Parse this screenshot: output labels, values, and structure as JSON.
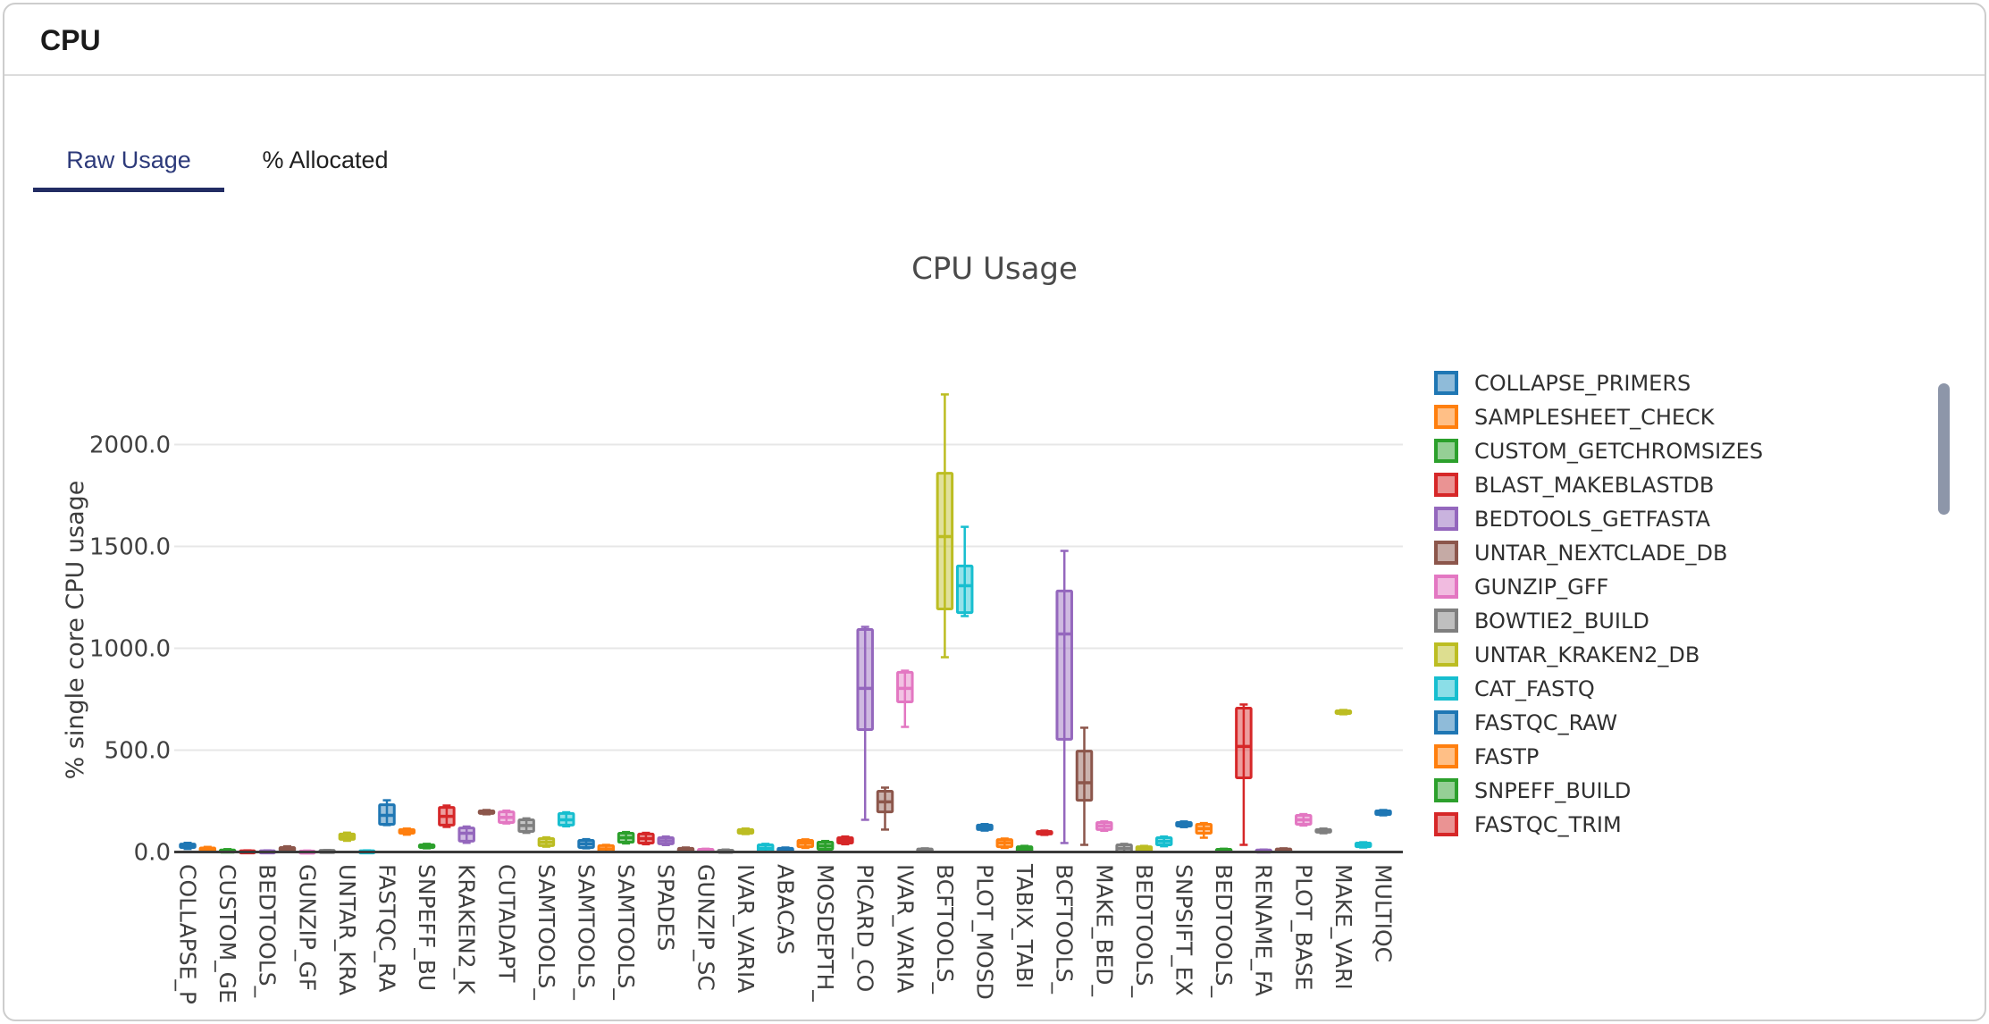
{
  "header": {
    "title": "CPU"
  },
  "tabs": [
    {
      "label": "Raw Usage",
      "active": true
    },
    {
      "label": "% Allocated",
      "active": false
    }
  ],
  "accent": {
    "active_tab": "#2d3a7a",
    "tab_underline": "#222c63",
    "scrollbar": "#8d96a9"
  },
  "chart_data": {
    "type": "box",
    "title": "CPU Usage",
    "ylabel": "% single core CPU usage",
    "yticks": [
      0,
      500,
      1000,
      1500,
      2000
    ],
    "ytick_labels": [
      "0.0",
      "500.0",
      "1000.0",
      "1500.0",
      "2000.0"
    ],
    "ylim": [
      0,
      2270
    ],
    "grid": true,
    "legend_position": "right",
    "palette": [
      "#1f77b4",
      "#ff7f0e",
      "#2ca02c",
      "#d62728",
      "#9467bd",
      "#8c564b",
      "#e377c2",
      "#7f7f7f",
      "#bcbd22",
      "#17becf"
    ],
    "legend": [
      {
        "label": "COLLAPSE_PRIMERS",
        "color_index": 0
      },
      {
        "label": "SAMPLESHEET_CHECK",
        "color_index": 1
      },
      {
        "label": "CUSTOM_GETCHROMSIZES",
        "color_index": 2
      },
      {
        "label": "BLAST_MAKEBLASTDB",
        "color_index": 3
      },
      {
        "label": "BEDTOOLS_GETFASTA",
        "color_index": 4
      },
      {
        "label": "UNTAR_NEXTCLADE_DB",
        "color_index": 5
      },
      {
        "label": "GUNZIP_GFF",
        "color_index": 6
      },
      {
        "label": "BOWTIE2_BUILD",
        "color_index": 7
      },
      {
        "label": "UNTAR_KRAKEN2_DB",
        "color_index": 8
      },
      {
        "label": "CAT_FASTQ",
        "color_index": 9
      },
      {
        "label": "FASTQC_RAW",
        "color_index": 0
      },
      {
        "label": "FASTP",
        "color_index": 1
      },
      {
        "label": "SNPEFF_BUILD",
        "color_index": 2
      },
      {
        "label": "FASTQC_TRIM",
        "color_index": 3
      }
    ],
    "columns": [
      "tick_label",
      "whisker_low",
      "q1",
      "median",
      "q3",
      "whisker_high"
    ],
    "categories": [
      [
        "COLLAPSE_P",
        15,
        22,
        30,
        39,
        45
      ],
      [
        "",
        2,
        5,
        12,
        20,
        25
      ],
      [
        "CUSTOM_GE",
        0,
        0,
        5,
        10,
        14
      ],
      [
        "",
        0,
        0,
        3,
        6,
        8
      ],
      [
        "BEDTOOLS_",
        0,
        0,
        3,
        6,
        8
      ],
      [
        "",
        5,
        8,
        15,
        22,
        28
      ],
      [
        "GUNZIP_GF",
        0,
        0,
        2,
        5,
        7
      ],
      [
        "",
        0,
        0,
        4,
        8,
        10
      ],
      [
        "UNTAR_KRA",
        55,
        62,
        75,
        88,
        95
      ],
      [
        "",
        0,
        0,
        3,
        6,
        8
      ],
      [
        "FASTQC_RA",
        132,
        136,
        180,
        232,
        254
      ],
      [
        "",
        85,
        92,
        101,
        110,
        115
      ],
      [
        "SNPEFF_BU",
        18,
        22,
        28,
        35,
        40
      ],
      [
        "",
        123,
        132,
        175,
        219,
        228
      ],
      [
        "KRAKEN2_K",
        45,
        53,
        92,
        118,
        125
      ],
      [
        "",
        185,
        189,
        196,
        202,
        206
      ],
      [
        "CUTADAPT",
        140,
        145,
        170,
        197,
        203
      ],
      [
        "",
        94,
        101,
        130,
        158,
        165
      ],
      [
        "SAMTOOLS_",
        26,
        31,
        48,
        66,
        72
      ],
      [
        "",
        126,
        132,
        158,
        189,
        195
      ],
      [
        "SAMTOOLS_",
        18,
        22,
        40,
        57,
        63
      ],
      [
        "",
        0,
        0,
        15,
        31,
        35
      ],
      [
        "SAMTOOLS_",
        42,
        48,
        70,
        92,
        98
      ],
      [
        "",
        38,
        44,
        66,
        88,
        94
      ],
      [
        "SPADES",
        34,
        40,
        55,
        70,
        76
      ],
      [
        "",
        0,
        0,
        9,
        18,
        22
      ],
      [
        "GUNZIP_SC",
        0,
        0,
        6,
        13,
        16
      ],
      [
        "",
        0,
        0,
        4,
        9,
        12
      ],
      [
        "IVAR_VARIA",
        88,
        92,
        100,
        110,
        115
      ],
      [
        "",
        0,
        4,
        18,
        35,
        40
      ],
      [
        "ABACAS",
        0,
        0,
        9,
        18,
        22
      ],
      [
        "",
        20,
        26,
        44,
        57,
        62
      ],
      [
        "MOSDEPTH_",
        8,
        13,
        30,
        48,
        54
      ],
      [
        "",
        38,
        44,
        57,
        70,
        76
      ],
      [
        "PICARD_CO",
        158,
        601,
        803,
        1092,
        1105
      ],
      [
        "",
        110,
        197,
        246,
        298,
        316
      ],
      [
        "IVAR_VARIA",
        614,
        737,
        803,
        882,
        890
      ],
      [
        "",
        0,
        0,
        7,
        15,
        18
      ],
      [
        "BCFTOOLS_",
        956,
        1193,
        1548,
        1859,
        2246
      ],
      [
        "",
        1158,
        1175,
        1307,
        1404,
        1596
      ],
      [
        "PLOT_MOSD",
        105,
        110,
        121,
        132,
        137
      ],
      [
        "",
        20,
        26,
        45,
        61,
        66
      ],
      [
        "TABIX_TABI",
        0,
        0,
        13,
        26,
        30
      ],
      [
        "",
        84,
        88,
        95,
        101,
        105
      ],
      [
        "BCFTOOLS_",
        44,
        553,
        1070,
        1281,
        1478
      ],
      [
        "",
        35,
        254,
        340,
        495,
        610
      ],
      [
        "MAKE_BED_",
        104,
        110,
        128,
        145,
        150
      ],
      [
        "",
        0,
        0,
        17,
        35,
        40
      ],
      [
        "BEDTOOLS_",
        0,
        0,
        13,
        26,
        30
      ],
      [
        "",
        28,
        35,
        52,
        70,
        76
      ],
      [
        "SNPSIFT_EX",
        122,
        127,
        136,
        145,
        150
      ],
      [
        "",
        70,
        92,
        115,
        136,
        142
      ],
      [
        "BEDTOOLS_",
        0,
        0,
        6,
        13,
        16
      ],
      [
        "",
        35,
        364,
        518,
        706,
        724
      ],
      [
        "RENAME_FA",
        0,
        0,
        5,
        10,
        12
      ],
      [
        "",
        0,
        2,
        8,
        15,
        18
      ],
      [
        "PLOT_BASE",
        130,
        136,
        158,
        180,
        186
      ],
      [
        "",
        92,
        97,
        103,
        110,
        115
      ],
      [
        "MAKE_VARI",
        676,
        680,
        688,
        693,
        697
      ],
      [
        "",
        22,
        26,
        35,
        44,
        48
      ],
      [
        "MULTIQC",
        180,
        184,
        193,
        202,
        206
      ]
    ]
  }
}
